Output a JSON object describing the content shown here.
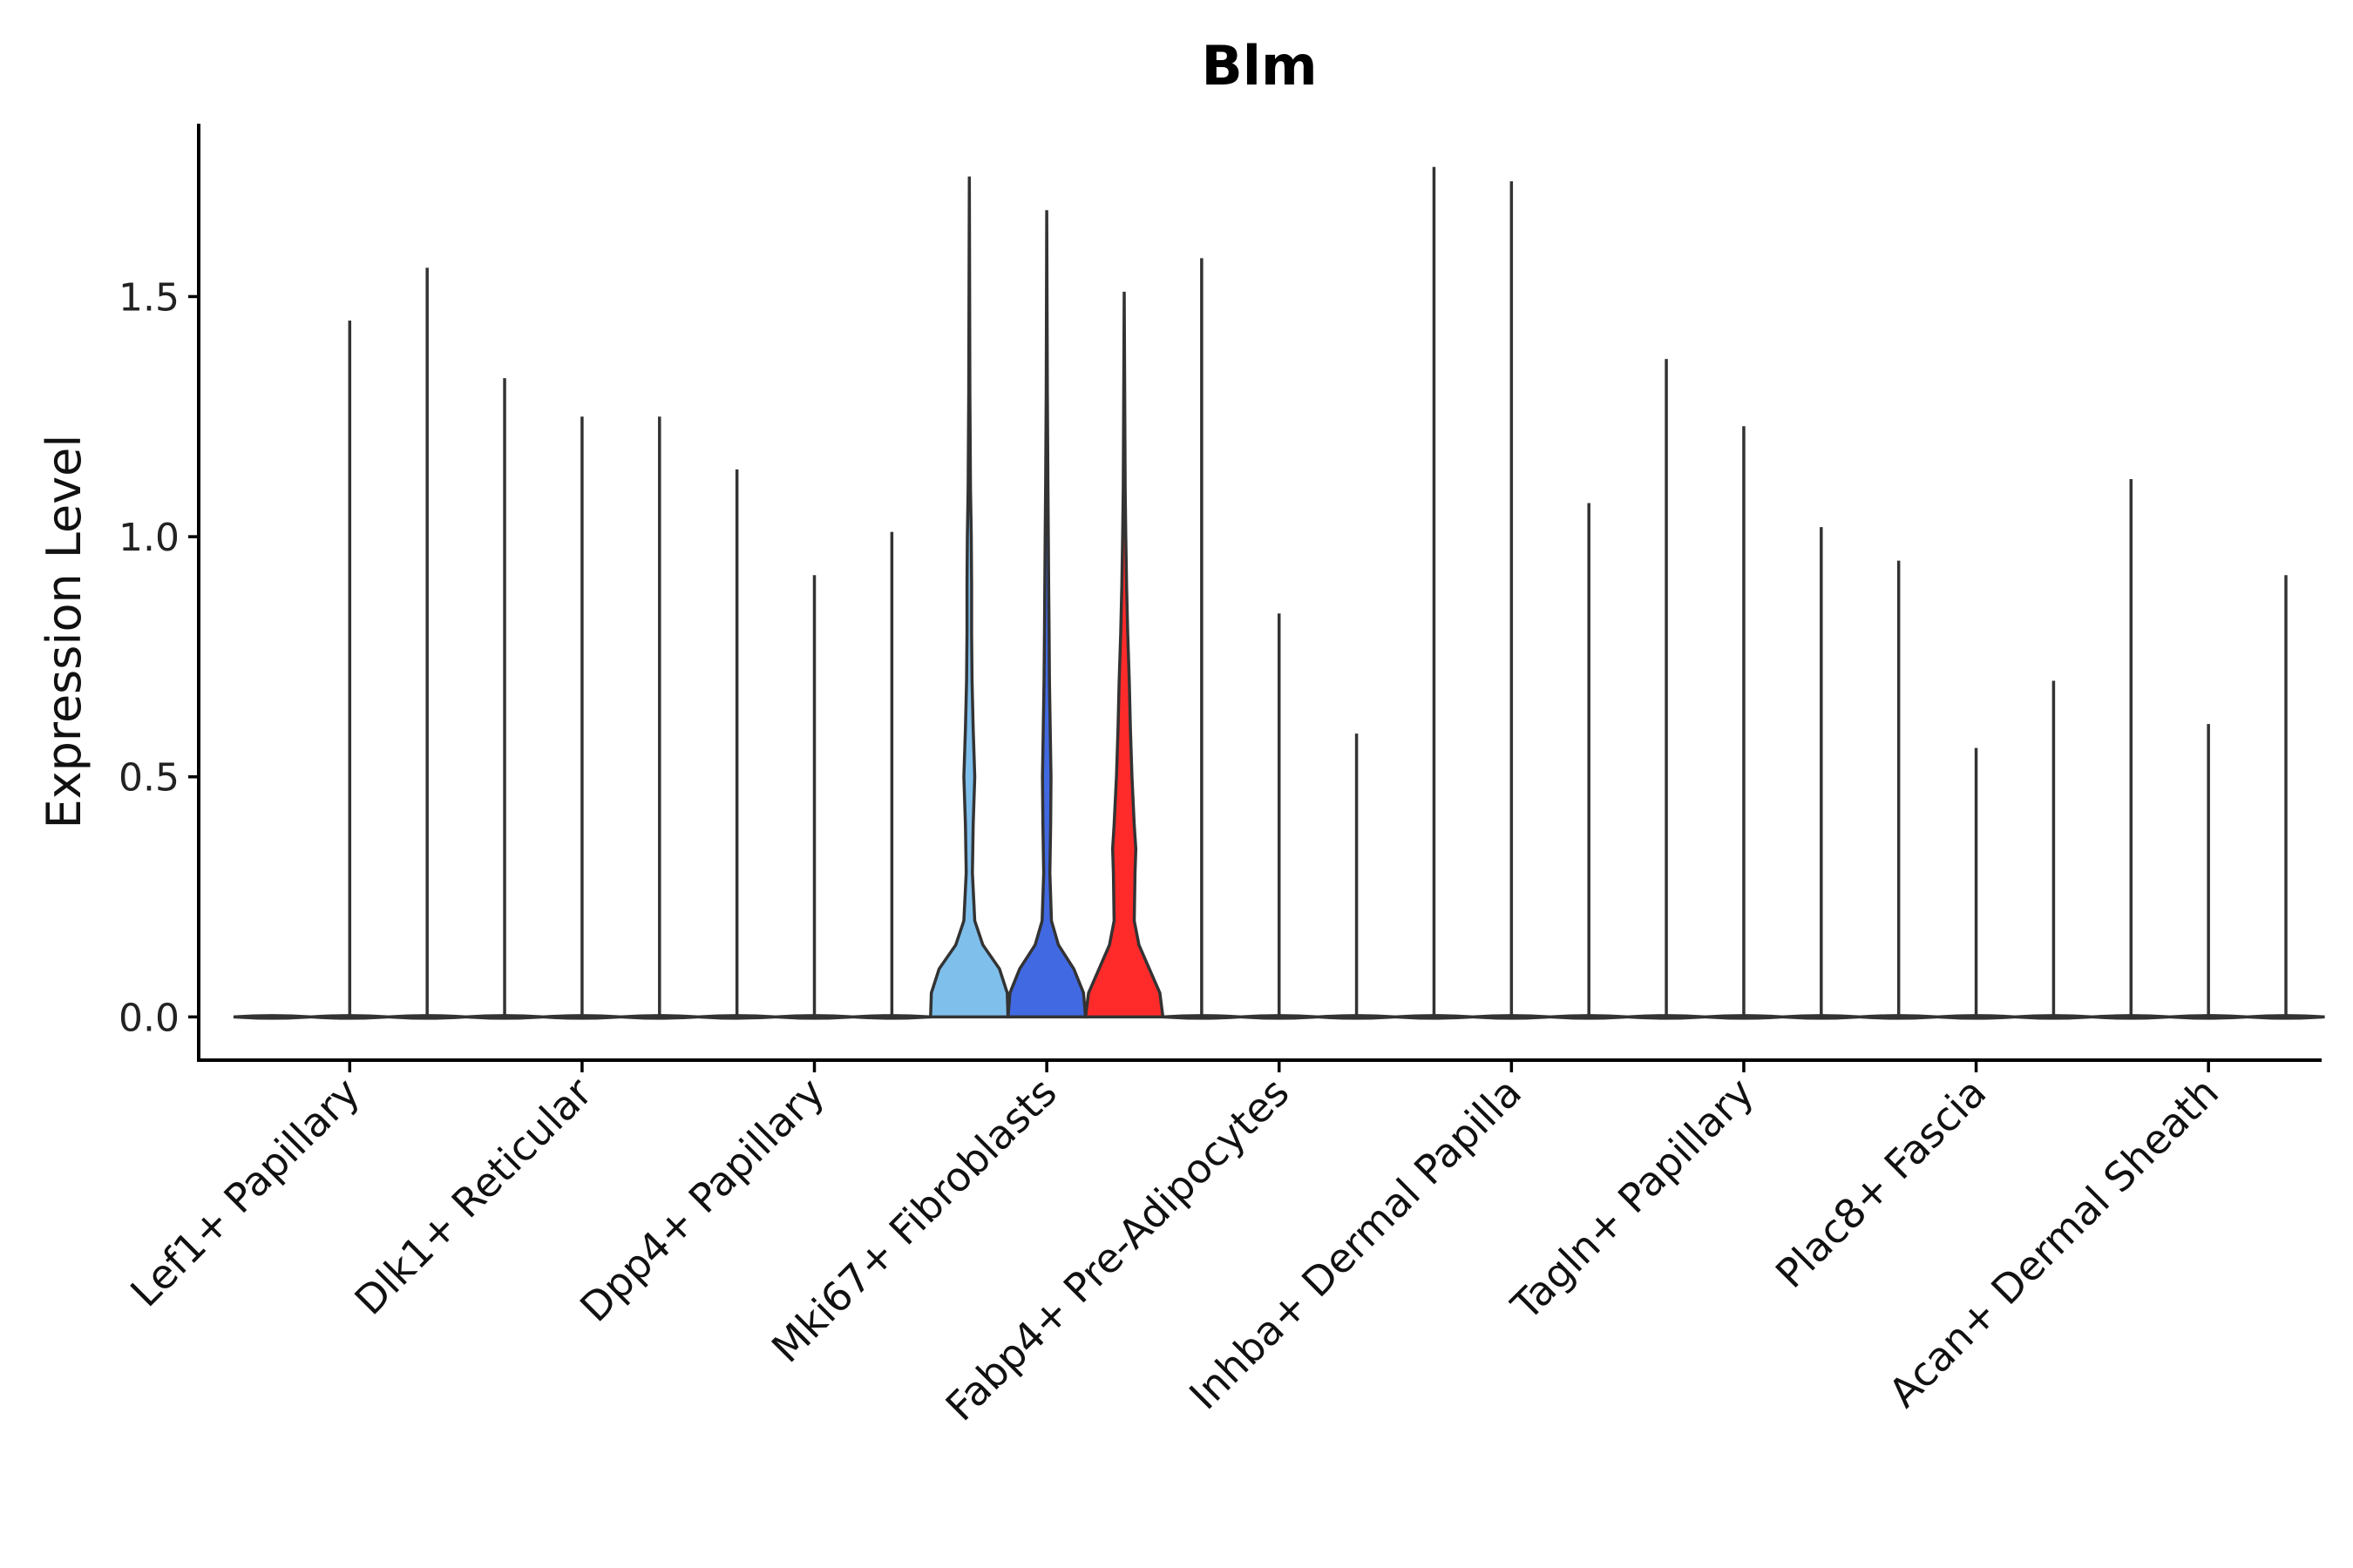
{
  "chart_data": {
    "type": "violin",
    "title": "Blm",
    "xlabel": "",
    "ylabel": "Expression Level",
    "ylim": [
      -0.09,
      1.86
    ],
    "yticks": [
      0.0,
      0.5,
      1.0,
      1.5
    ],
    "ytick_labels": [
      "0.0",
      "0.5",
      "1.0",
      "1.5"
    ],
    "grid": false,
    "legend": "none",
    "categories": [
      "Lef1+ Papillary",
      "Dlk1+ Reticular",
      "Dpp4+ Papillary",
      "Mki67+ Fibroblasts",
      "Fabp4+ Pre-Adipocytes",
      "Inhba+ Dermal Papilla",
      "Tagln+ Papillary",
      "Plac8+ Fascia",
      "Acan+ Dermal Sheath"
    ],
    "groups": [
      {
        "category": "Lef1+ Papillary",
        "violins": [
          {
            "max": 0.0,
            "color": "#ffffff"
          },
          {
            "max": 1.45,
            "color": "#ffffff"
          },
          {
            "max": 1.56,
            "color": "#ffffff"
          }
        ]
      },
      {
        "category": "Dlk1+ Reticular",
        "violins": [
          {
            "max": 1.33,
            "color": "#ffffff"
          },
          {
            "max": 1.25,
            "color": "#ffffff"
          },
          {
            "max": 1.25,
            "color": "#ffffff"
          }
        ]
      },
      {
        "category": "Dpp4+ Papillary",
        "violins": [
          {
            "max": 1.14,
            "color": "#ffffff"
          },
          {
            "max": 0.92,
            "color": "#ffffff"
          },
          {
            "max": 1.01,
            "color": "#ffffff"
          }
        ]
      },
      {
        "category": "Mki67+ Fibroblasts",
        "violins": [
          {
            "max": 1.75,
            "color": "#7fbfec",
            "density": [
              [
                0.0,
                1.0
              ],
              [
                0.05,
                0.98
              ],
              [
                0.1,
                0.78
              ],
              [
                0.15,
                0.35
              ],
              [
                0.2,
                0.14
              ],
              [
                0.3,
                0.08
              ],
              [
                0.4,
                0.1
              ],
              [
                0.5,
                0.14
              ],
              [
                0.6,
                0.1
              ],
              [
                0.7,
                0.07
              ],
              [
                0.8,
                0.06
              ],
              [
                0.9,
                0.06
              ],
              [
                1.0,
                0.05
              ],
              [
                1.1,
                0.03
              ],
              [
                1.3,
                0.015
              ],
              [
                1.75,
                0.0
              ]
            ]
          },
          {
            "max": 1.68,
            "color": "#4169e1",
            "density": [
              [
                0.0,
                1.0
              ],
              [
                0.05,
                0.95
              ],
              [
                0.1,
                0.7
              ],
              [
                0.15,
                0.3
              ],
              [
                0.2,
                0.12
              ],
              [
                0.3,
                0.08
              ],
              [
                0.4,
                0.1
              ],
              [
                0.5,
                0.11
              ],
              [
                0.6,
                0.09
              ],
              [
                0.7,
                0.07
              ],
              [
                0.8,
                0.06
              ],
              [
                0.9,
                0.05
              ],
              [
                1.0,
                0.04
              ],
              [
                1.1,
                0.03
              ],
              [
                1.3,
                0.015
              ],
              [
                1.68,
                0.0
              ]
            ]
          },
          {
            "max": 1.51,
            "color": "#ff2a2a",
            "density": [
              [
                0.0,
                1.0
              ],
              [
                0.05,
                0.92
              ],
              [
                0.1,
                0.65
              ],
              [
                0.15,
                0.38
              ],
              [
                0.2,
                0.26
              ],
              [
                0.3,
                0.28
              ],
              [
                0.35,
                0.3
              ],
              [
                0.4,
                0.26
              ],
              [
                0.5,
                0.2
              ],
              [
                0.6,
                0.16
              ],
              [
                0.7,
                0.13
              ],
              [
                0.8,
                0.09
              ],
              [
                0.9,
                0.06
              ],
              [
                1.0,
                0.04
              ],
              [
                1.1,
                0.025
              ],
              [
                1.51,
                0.0
              ]
            ]
          }
        ]
      },
      {
        "category": "Fabp4+ Pre-Adipocytes",
        "violins": [
          {
            "max": 1.58,
            "color": "#ffffff"
          },
          {
            "max": 0.84,
            "color": "#ffffff"
          },
          {
            "max": 0.59,
            "color": "#ffffff"
          }
        ]
      },
      {
        "category": "Inhba+ Dermal Papilla",
        "violins": [
          {
            "max": 1.77,
            "color": "#ffffff"
          },
          {
            "max": 1.74,
            "color": "#ffffff"
          },
          {
            "max": 1.07,
            "color": "#ffffff"
          }
        ]
      },
      {
        "category": "Tagln+ Papillary",
        "violins": [
          {
            "max": 1.37,
            "color": "#ffffff"
          },
          {
            "max": 1.23,
            "color": "#ffffff"
          },
          {
            "max": 1.02,
            "color": "#ffffff"
          }
        ]
      },
      {
        "category": "Plac8+ Fascia",
        "violins": [
          {
            "max": 0.95,
            "color": "#ffffff"
          },
          {
            "max": 0.56,
            "color": "#ffffff"
          },
          {
            "max": 0.7,
            "color": "#ffffff"
          }
        ]
      },
      {
        "category": "Acan+ Dermal Sheath",
        "violins": [
          {
            "max": 1.12,
            "color": "#ffffff"
          },
          {
            "max": 0.61,
            "color": "#ffffff"
          },
          {
            "max": 0.92,
            "color": "#ffffff"
          }
        ]
      }
    ]
  }
}
